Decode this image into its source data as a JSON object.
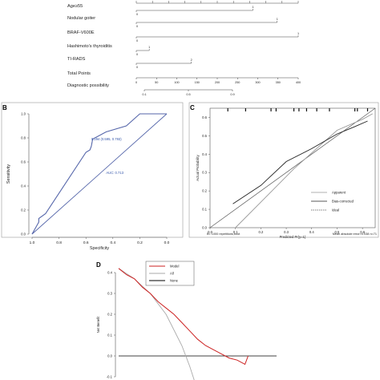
{
  "figure": {
    "panel_b_letter": "B",
    "panel_c_letter": "C",
    "panel_d_letter": "D"
  },
  "chart_data": [
    {
      "panel": "A",
      "type": "table",
      "title": "",
      "points_axis": {
        "ticks": [
          "0",
          "10",
          "20",
          "30",
          "40",
          "50",
          "60",
          "70",
          "80",
          "90",
          "100"
        ],
        "range": [
          0,
          100
        ]
      },
      "total_points_axis": {
        "ticks": [
          "0",
          "50",
          "100",
          "150",
          "200",
          "250",
          "300",
          "350",
          "400"
        ],
        "range": [
          0,
          400
        ]
      },
      "probability_axis": {
        "ticks": [
          "0.1",
          "0.5",
          "0.9"
        ],
        "values": [
          0.1,
          0.5,
          0.9
        ]
      },
      "rows": [
        {
          "label": "Age≥55",
          "low": "0",
          "high": "1",
          "max_points": 72
        },
        {
          "label": "Nodular goiter",
          "low": "0",
          "high": "1",
          "max_points": 87
        },
        {
          "label": "BRAF-V600E",
          "low": "0",
          "high": "1",
          "max_points": 100
        },
        {
          "label": "Hashimoto's thyroiditis",
          "low": "0",
          "high": "1",
          "max_points": 8
        },
        {
          "label": "TI-RADS",
          "low": "0",
          "high": "2",
          "max_points": 34
        },
        {
          "label": "Total Points",
          "axis": "total"
        },
        {
          "label": "Diagnostic possibility",
          "axis": "probability"
        }
      ]
    },
    {
      "panel": "B",
      "type": "line",
      "xlabel": "Specificity",
      "ylabel": "Sensitivity",
      "xlim": [
        1.0,
        0.0
      ],
      "ylim": [
        0.0,
        1.0
      ],
      "x_ticks": [
        "1.0",
        "0.8",
        "0.6",
        "0.4",
        "0.2",
        "0.0"
      ],
      "y_ticks": [
        "0.0",
        "0.2",
        "0.4",
        "0.6",
        "0.8",
        "1.0"
      ],
      "annotations": [
        "0.294 (0.595, 0.793)",
        "AUC: 0.713"
      ],
      "series": [
        {
          "values": [
            [
              1.0,
              0.0
            ],
            [
              0.95,
              0.1
            ],
            [
              0.95,
              0.13
            ],
            [
              0.9,
              0.17
            ],
            [
              0.6,
              0.68
            ],
            [
              0.57,
              0.7
            ],
            [
              0.56,
              0.73
            ],
            [
              0.55,
              0.79
            ],
            [
              0.45,
              0.85
            ],
            [
              0.3,
              0.9
            ],
            [
              0.25,
              0.95
            ],
            [
              0.2,
              1.0
            ],
            [
              0.0,
              1.0
            ]
          ]
        },
        {
          "values": [
            [
              1.0,
              0.0
            ],
            [
              0.0,
              1.0
            ]
          ]
        }
      ]
    },
    {
      "panel": "C",
      "type": "line",
      "xlabel": "Predicted Pr{y=1}",
      "ylabel": "Actual Probability",
      "xlim": [
        0.0,
        0.65
      ],
      "ylim": [
        0.0,
        0.65
      ],
      "x_ticks": [
        "0.0",
        "0.1",
        "0.2",
        "0.3",
        "0.4",
        "0.5",
        "0.6"
      ],
      "y_ticks": [
        "0.0",
        "0.1",
        "0.2",
        "0.3",
        "0.4",
        "0.5",
        "0.6"
      ],
      "legend": [
        "Apparent",
        "Bias-corrected",
        "Ideal"
      ],
      "legend_position": "bottom-right",
      "footnote_left": "B= 1000 repetitions,boot",
      "footnote_right": "Mean absolute error=0.038 n=71",
      "rug_x": [
        0.07,
        0.14,
        0.24,
        0.26,
        0.33,
        0.35,
        0.38,
        0.42,
        0.47,
        0.57,
        0.58,
        0.62
      ],
      "series": [
        {
          "name": "Apparent",
          "values": [
            [
              0.1,
              0.0
            ],
            [
              0.33,
              0.32
            ],
            [
              0.5,
              0.53
            ],
            [
              0.6,
              0.59
            ],
            [
              0.64,
              0.62
            ]
          ]
        },
        {
          "name": "Bias-corrected",
          "values": [
            [
              0.09,
              0.13
            ],
            [
              0.2,
              0.23
            ],
            [
              0.3,
              0.36
            ],
            [
              0.4,
              0.43
            ],
            [
              0.5,
              0.51
            ],
            [
              0.57,
              0.55
            ],
            [
              0.62,
              0.58
            ]
          ]
        },
        {
          "name": "Ideal",
          "values": [
            [
              0.0,
              0.0
            ],
            [
              0.65,
              0.65
            ]
          ]
        }
      ]
    },
    {
      "panel": "D",
      "type": "line",
      "xlabel": "",
      "ylabel": "Net Benefit",
      "ylim": [
        -0.1,
        0.4
      ],
      "y_ticks": [
        "-0.1",
        "0.0",
        "0.1",
        "0.2",
        "0.3",
        "0.4"
      ],
      "legend": [
        "Model",
        "All",
        "None"
      ],
      "legend_position": "top-center",
      "series": [
        {
          "name": "Model",
          "color": "#cc2222",
          "values": [
            [
              0.0,
              0.42
            ],
            [
              0.05,
              0.39
            ],
            [
              0.1,
              0.37
            ],
            [
              0.15,
              0.33
            ],
            [
              0.2,
              0.3
            ],
            [
              0.25,
              0.26
            ],
            [
              0.3,
              0.23
            ],
            [
              0.35,
              0.2
            ],
            [
              0.4,
              0.16
            ],
            [
              0.45,
              0.12
            ],
            [
              0.5,
              0.08
            ],
            [
              0.55,
              0.05
            ],
            [
              0.6,
              0.03
            ],
            [
              0.65,
              0.01
            ],
            [
              0.7,
              -0.01
            ],
            [
              0.75,
              -0.02
            ],
            [
              0.8,
              -0.04
            ],
            [
              0.82,
              0.0
            ]
          ]
        },
        {
          "name": "All",
          "color": "#aaaaaa",
          "values": [
            [
              0.0,
              0.42
            ],
            [
              0.1,
              0.37
            ],
            [
              0.2,
              0.3
            ],
            [
              0.3,
              0.2
            ],
            [
              0.4,
              0.05
            ],
            [
              0.45,
              -0.05
            ],
            [
              0.48,
              -0.12
            ]
          ]
        },
        {
          "name": "None",
          "color": "#000000",
          "values": [
            [
              0.0,
              0.0
            ],
            [
              1.0,
              0.0
            ]
          ]
        }
      ]
    }
  ]
}
